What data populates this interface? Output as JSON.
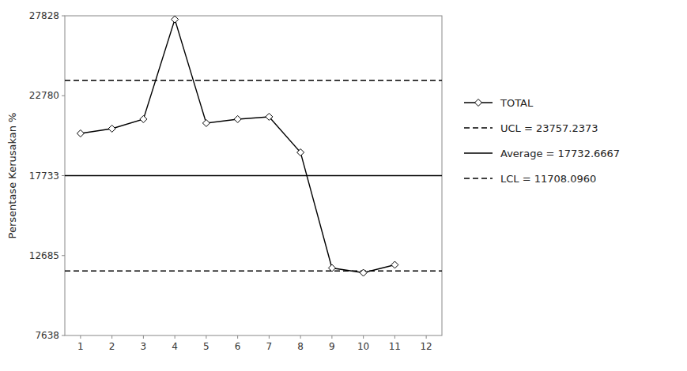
{
  "chart_data": {
    "type": "line",
    "x": [
      1,
      2,
      3,
      4,
      5,
      6,
      7,
      8,
      9,
      10,
      11
    ],
    "series": [
      {
        "name": "TOTAL",
        "color": "#000000",
        "marker": "diamond",
        "values": [
          20400,
          20700,
          21300,
          27600,
          21050,
          21300,
          21450,
          19200,
          11900,
          11600,
          12100
        ]
      }
    ],
    "lines": [
      {
        "name": "UCL = 23757.2373",
        "value": 23757.2373,
        "color": "#000000",
        "line_style": "dashed"
      },
      {
        "name": "Average = 17732.6667",
        "value": 17732.6667,
        "color": "#000000",
        "line_style": "solid"
      },
      {
        "name": "LCL = 11708.0960",
        "value": 11708.096,
        "color": "#000000",
        "line_style": "dashed"
      }
    ],
    "ylabel": "Persentase Kerusakan %",
    "xlim": [
      0.5,
      12.5
    ],
    "ylim": [
      7638,
      27828
    ],
    "xticks": [
      1,
      2,
      3,
      4,
      5,
      6,
      7,
      8,
      9,
      10,
      11,
      12
    ],
    "yticks": [
      7638,
      12685,
      17733,
      22780,
      27828
    ],
    "grid": false,
    "legend": "right"
  }
}
